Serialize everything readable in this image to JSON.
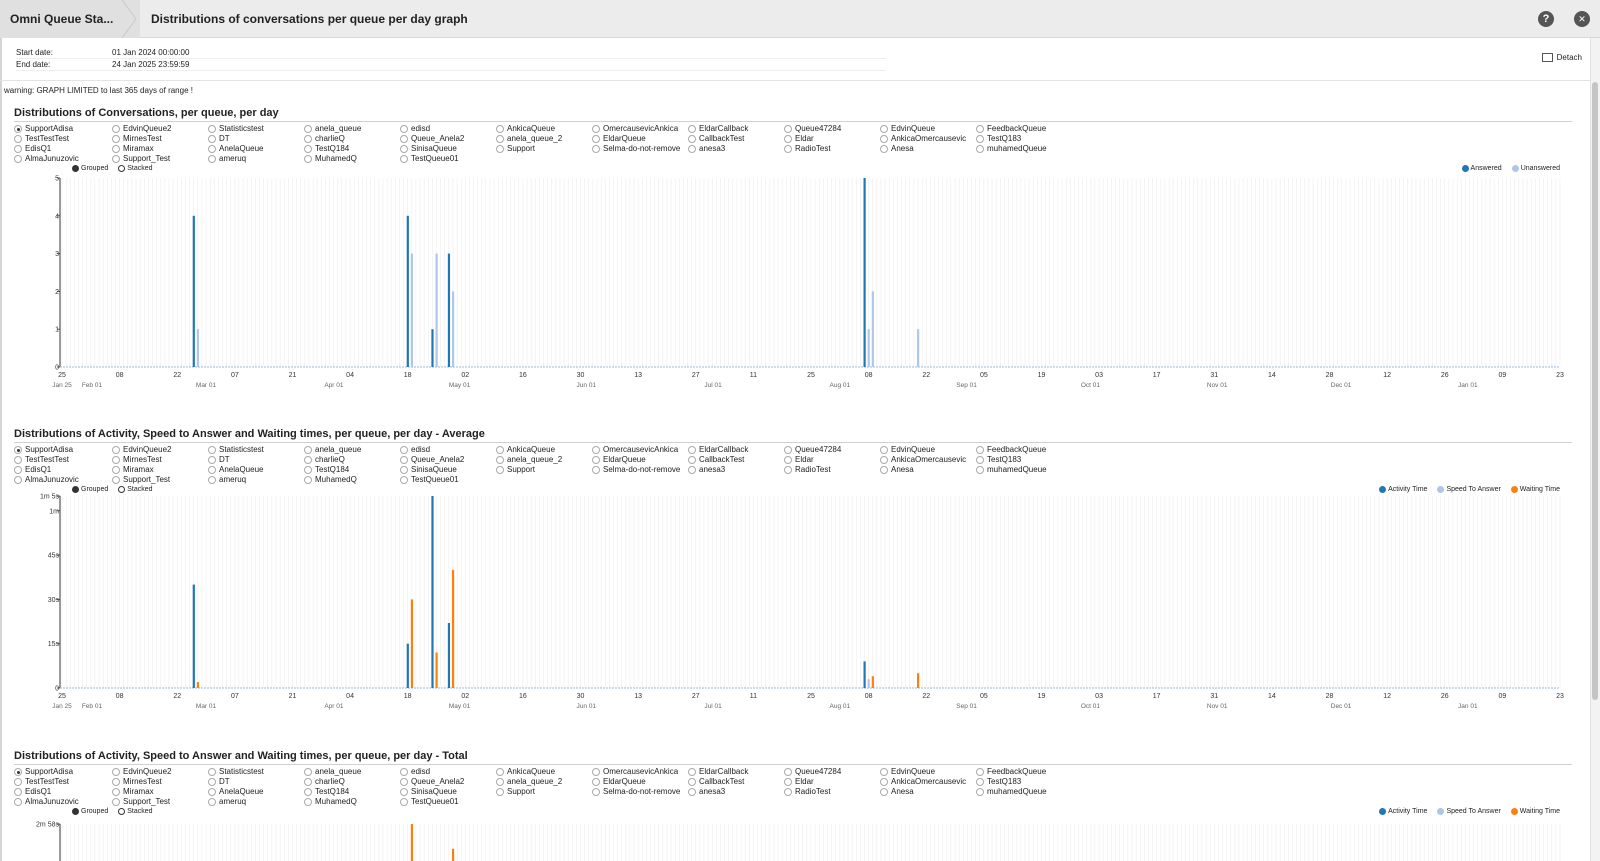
{
  "header": {
    "breadcrumb_first": "Omni Queue Sta...",
    "breadcrumb_second": "Distributions of conversations per queue per day graph",
    "help_glyph": "?",
    "close_glyph": "✕"
  },
  "dates": {
    "start_label": "Start date:",
    "start_value": "01 Jan 2024 00:00:00",
    "end_label": "End date:",
    "end_value": "24 Jan 2025 23:59:59"
  },
  "detach_label": "Detach",
  "warning": "warning: GRAPH LIMITED to last 365 days of range !",
  "queues": [
    [
      "SupportAdisa",
      "TestTestTest",
      "EdisQ1",
      "AlmaJunuzovic"
    ],
    [
      "EdvinQueue2",
      "MirnesTest",
      "Miramax",
      "Support_Test"
    ],
    [
      "Statisticstest",
      "DT",
      "AnelaQueue",
      "ameruq"
    ],
    [
      "anela_queue",
      "charlieQ",
      "TestQ184",
      "MuhamedQ"
    ],
    [
      "edisd",
      "Queue_Anela2",
      "SinisaQueue",
      "TestQueue01"
    ],
    [
      "AnkicaQueue",
      "anela_queue_2",
      "Support"
    ],
    [
      "OmercausevicAnkica",
      "EldarQueue",
      "Selma-do-not-remove"
    ],
    [
      "EldarCallback",
      "CallbackTest",
      "anesa3"
    ],
    [
      "Queue47284",
      "Eldar",
      "RadioTest"
    ],
    [
      "EdvinQueue",
      "AnkicaOmercausevic",
      "Anesa"
    ],
    [
      "FeedbackQueue",
      "TestQ183",
      "muhamedQueue"
    ]
  ],
  "selected_queue": "SupportAdisa",
  "mode": {
    "grouped": "Grouped",
    "stacked": "Stacked",
    "selected": "grouped"
  },
  "x_ticks": {
    "top": [
      "25",
      "08",
      "22",
      "07",
      "21",
      "04",
      "18",
      "02",
      "16",
      "30",
      "13",
      "27",
      "11",
      "25",
      "08",
      "22",
      "05",
      "19",
      "03",
      "17",
      "31",
      "14",
      "28",
      "12",
      "26",
      "09",
      "23"
    ],
    "months": [
      {
        "label": "Jan 25",
        "tick": 0
      },
      {
        "label": "Feb 01",
        "tick": 0.52
      },
      {
        "label": "Mar 01",
        "tick": 2.5
      },
      {
        "label": "Apr 01",
        "tick": 4.72
      },
      {
        "label": "May 01",
        "tick": 6.9
      },
      {
        "label": "Jun 01",
        "tick": 9.1
      },
      {
        "label": "Jul 01",
        "tick": 11.3
      },
      {
        "label": "Aug 01",
        "tick": 13.5
      },
      {
        "label": "Sep 01",
        "tick": 15.7
      },
      {
        "label": "Oct 01",
        "tick": 17.85
      },
      {
        "label": "Nov 01",
        "tick": 20.05
      },
      {
        "label": "Dec 01",
        "tick": 22.2
      },
      {
        "label": "Jan 01",
        "tick": 24.4
      }
    ]
  },
  "sections": [
    {
      "title": "Distributions of Conversations, per queue, per day",
      "legend": [
        {
          "label": "Answered",
          "color": "#1f77b4"
        },
        {
          "label": "Unanswered",
          "color": "#aec7e8"
        }
      ],
      "chart_data": {
        "type": "bar",
        "x_range": [
          "2024-01-25",
          "2025-01-23"
        ],
        "y_ticks": [
          "0",
          "1",
          "2",
          "3",
          "4",
          "5"
        ],
        "ylim": [
          0,
          5
        ],
        "series": [
          {
            "name": "Answered",
            "color": "#1f77b4",
            "points": [
              {
                "date": "2024-02-26",
                "value": 4
              },
              {
                "date": "2024-04-18",
                "value": 4
              },
              {
                "date": "2024-04-24",
                "value": 1
              },
              {
                "date": "2024-04-28",
                "value": 3
              },
              {
                "date": "2024-08-07",
                "value": 5
              }
            ]
          },
          {
            "name": "Unanswered",
            "color": "#aec7e8",
            "points": [
              {
                "date": "2024-02-27",
                "value": 1
              },
              {
                "date": "2024-04-19",
                "value": 3
              },
              {
                "date": "2024-04-25",
                "value": 3
              },
              {
                "date": "2024-04-29",
                "value": 2
              },
              {
                "date": "2024-08-08",
                "value": 1
              },
              {
                "date": "2024-08-09",
                "value": 2
              },
              {
                "date": "2024-08-20",
                "value": 1
              }
            ]
          }
        ]
      }
    },
    {
      "title": "Distributions of Activity, Speed to Answer and Waiting times, per queue, per day - Average",
      "legend": [
        {
          "label": "Activity Time",
          "color": "#1f77b4"
        },
        {
          "label": "Speed To Answer",
          "color": "#aec7e8"
        },
        {
          "label": "Waiting Time",
          "color": "#ff7f0e"
        }
      ],
      "chart_data": {
        "type": "bar",
        "x_range": [
          "2024-01-25",
          "2025-01-23"
        ],
        "y_ticks": [
          "0",
          "15s",
          "30s",
          "45s",
          "1m",
          "1m 5s"
        ],
        "y_tick_seconds": [
          0,
          15,
          30,
          45,
          60,
          65
        ],
        "ylim": [
          0,
          65
        ],
        "series": [
          {
            "name": "Activity Time",
            "color": "#1f77b4",
            "points": [
              {
                "date": "2024-02-26",
                "value": 35
              },
              {
                "date": "2024-04-18",
                "value": 15
              },
              {
                "date": "2024-04-24",
                "value": 65
              },
              {
                "date": "2024-04-28",
                "value": 22
              },
              {
                "date": "2024-08-07",
                "value": 9
              }
            ]
          },
          {
            "name": "Speed To Answer",
            "color": "#aec7e8",
            "points": [
              {
                "date": "2024-08-08",
                "value": 3
              }
            ]
          },
          {
            "name": "Waiting Time",
            "color": "#ff7f0e",
            "points": [
              {
                "date": "2024-02-27",
                "value": 2
              },
              {
                "date": "2024-04-19",
                "value": 30
              },
              {
                "date": "2024-04-25",
                "value": 12
              },
              {
                "date": "2024-04-29",
                "value": 40
              },
              {
                "date": "2024-08-09",
                "value": 4
              },
              {
                "date": "2024-08-20",
                "value": 5
              }
            ]
          }
        ]
      }
    },
    {
      "title": "Distributions of Activity, Speed to Answer and Waiting times, per queue, per day - Total",
      "legend": [
        {
          "label": "Activity Time",
          "color": "#1f77b4"
        },
        {
          "label": "Speed To Answer",
          "color": "#aec7e8"
        },
        {
          "label": "Waiting Time",
          "color": "#ff7f0e"
        }
      ],
      "chart_data": {
        "type": "bar",
        "x_range": [
          "2024-01-25",
          "2025-01-23"
        ],
        "y_ticks": [
          "2m 58s"
        ],
        "y_tick_seconds": [
          178
        ],
        "ylim": [
          0,
          178
        ],
        "series": [
          {
            "name": "Waiting Time",
            "color": "#ff7f0e",
            "points": [
              {
                "date": "2024-04-19",
                "value": 178
              },
              {
                "date": "2024-04-29",
                "value": 120
              }
            ]
          }
        ]
      }
    }
  ]
}
